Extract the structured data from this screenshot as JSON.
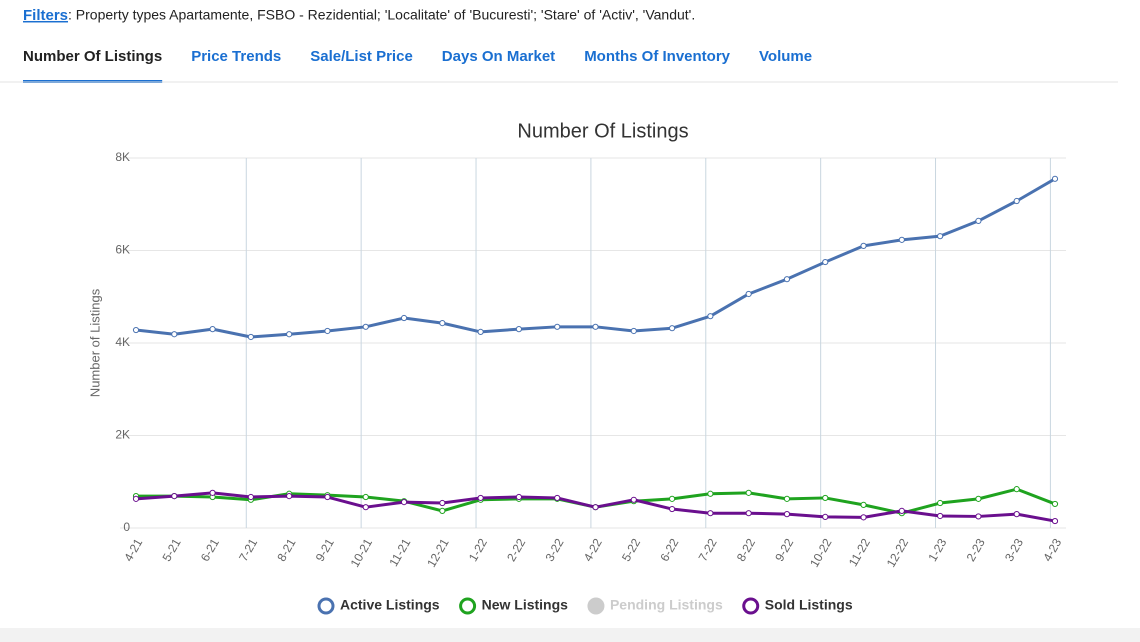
{
  "filters": {
    "label": "Filters",
    "text": ": Property types Apartamente, FSBO - Rezidential; 'Localitate' of 'Bucuresti'; 'Stare' of 'Activ', 'Vandut'."
  },
  "tabs": [
    "Number Of Listings",
    "Price Trends",
    "Sale/List Price",
    "Days On Market",
    "Months Of Inventory",
    "Volume"
  ],
  "chart_data": {
    "type": "line",
    "title": "Number Of Listings",
    "y_label": "Number of Listings",
    "categories": [
      "4-21",
      "5-21",
      "6-21",
      "7-21",
      "8-21",
      "9-21",
      "10-21",
      "11-21",
      "12-21",
      "1-22",
      "2-22",
      "3-22",
      "4-22",
      "5-22",
      "6-22",
      "7-22",
      "8-22",
      "9-22",
      "10-22",
      "11-22",
      "12-22",
      "1-23",
      "2-23",
      "3-23",
      "4-23"
    ],
    "series": [
      {
        "name": "Active Listings",
        "color": "#4a72b0",
        "visible": true,
        "values": [
          4280,
          4190,
          4300,
          4130,
          4190,
          4260,
          4350,
          4540,
          4430,
          4240,
          4300,
          4350,
          4350,
          4260,
          4320,
          4580,
          5060,
          5380,
          5750,
          6100,
          6230,
          6310,
          6640,
          7070,
          7550
        ]
      },
      {
        "name": "New Listings",
        "color": "#1fa31f",
        "visible": true,
        "values": [
          690,
          690,
          670,
          610,
          740,
          710,
          670,
          580,
          370,
          610,
          630,
          630,
          450,
          580,
          630,
          740,
          760,
          630,
          650,
          500,
          320,
          540,
          630,
          840,
          520
        ]
      },
      {
        "name": "Pending Listings",
        "color": "#cccccc",
        "visible": false,
        "values": [
          null,
          null,
          null,
          null,
          null,
          null,
          null,
          null,
          null,
          null,
          null,
          null,
          null,
          null,
          null,
          null,
          null,
          null,
          null,
          null,
          null,
          null,
          null,
          null,
          null
        ]
      },
      {
        "name": "Sold Listings",
        "color": "#6a0f8e",
        "visible": true,
        "values": [
          630,
          690,
          760,
          670,
          690,
          670,
          450,
          560,
          540,
          650,
          670,
          650,
          450,
          610,
          410,
          320,
          320,
          300,
          240,
          230,
          370,
          260,
          250,
          300,
          150
        ]
      }
    ],
    "ylim": [
      0,
      8000
    ],
    "yticks": [
      0,
      {
        "value": 2000,
        "label": "2K"
      },
      {
        "value": 4000,
        "label": "4K"
      },
      {
        "value": 6000,
        "label": "6K"
      },
      {
        "value": 8000,
        "label": "8K"
      }
    ],
    "grid": true
  }
}
